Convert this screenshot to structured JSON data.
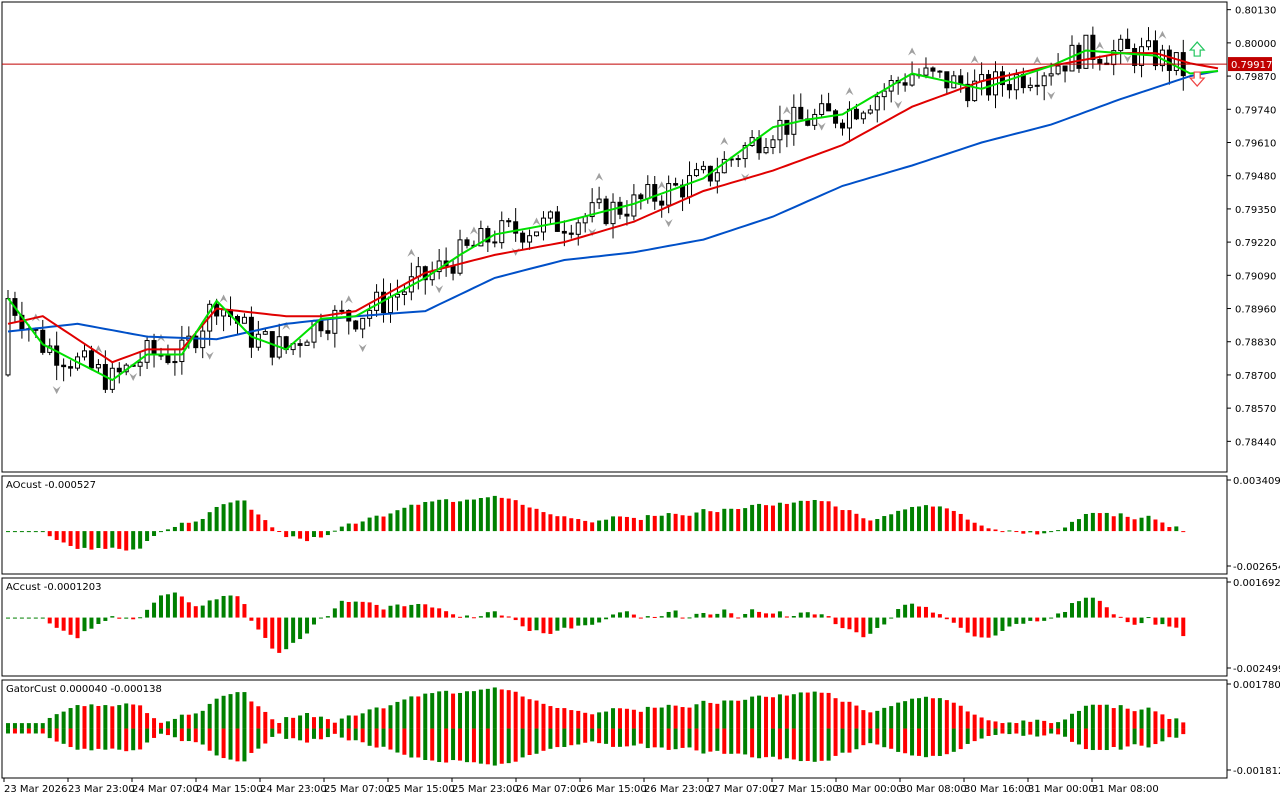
{
  "chart_data": [
    {
      "type": "candlestick",
      "title": "",
      "ylim": [
        0.7832,
        0.8016
      ],
      "yticks": [
        "0.80130",
        "0.80000",
        "0.79870",
        "0.79740",
        "0.79610",
        "0.79480",
        "0.79350",
        "0.79220",
        "0.79090",
        "0.78960",
        "0.78830",
        "0.78700",
        "0.78570",
        "0.78440"
      ],
      "current_price": "0.79917",
      "colors": {
        "up": "#ffffff",
        "down": "#000000",
        "price_line": "#c00000",
        "price_label_bg": "#c00000",
        "jaw": "#0050c8",
        "teeth": "#e00000",
        "lips": "#00e000",
        "arrows": "#a0a0a0"
      },
      "series": [
        {
          "name": "Alligator jaw",
          "color": "#0050c8",
          "x": [
            0,
            10,
            20,
            30,
            40,
            50,
            60,
            70,
            80,
            90,
            100,
            110,
            120,
            130,
            140,
            150,
            160,
            170,
            174
          ],
          "values": [
            0.7887,
            0.789,
            0.7885,
            0.7884,
            0.789,
            0.7893,
            0.7895,
            0.7908,
            0.7915,
            0.7918,
            0.7923,
            0.7932,
            0.7944,
            0.7952,
            0.7961,
            0.7968,
            0.7978,
            0.7987,
            0.7989
          ]
        },
        {
          "name": "Alligator teeth",
          "color": "#e00000",
          "x": [
            0,
            5,
            15,
            20,
            25,
            30,
            40,
            45,
            50,
            60,
            70,
            80,
            90,
            100,
            110,
            120,
            130,
            140,
            150,
            160,
            165,
            170,
            174
          ],
          "values": [
            0.789,
            0.7893,
            0.7875,
            0.788,
            0.788,
            0.7896,
            0.7893,
            0.7893,
            0.7895,
            0.791,
            0.7917,
            0.7922,
            0.793,
            0.7942,
            0.795,
            0.796,
            0.7975,
            0.7985,
            0.7991,
            0.7996,
            0.7996,
            0.7992,
            0.799
          ]
        },
        {
          "name": "Alligator lips",
          "color": "#00e000",
          "x": [
            0,
            5,
            15,
            20,
            25,
            30,
            35,
            40,
            45,
            50,
            60,
            65,
            70,
            80,
            90,
            100,
            110,
            115,
            120,
            130,
            140,
            150,
            155,
            160,
            165,
            170,
            174
          ],
          "values": [
            0.79,
            0.7882,
            0.7868,
            0.7878,
            0.7878,
            0.7899,
            0.7885,
            0.788,
            0.7892,
            0.7893,
            0.7908,
            0.7917,
            0.7925,
            0.793,
            0.7937,
            0.7947,
            0.7967,
            0.797,
            0.7972,
            0.7988,
            0.7982,
            0.7991,
            0.7997,
            0.7996,
            0.7995,
            0.7988,
            0.7989
          ]
        }
      ]
    },
    {
      "type": "bar",
      "title": "AOcust -0.000527",
      "yticks": [
        "0.003409",
        "-0.002654"
      ],
      "ylim": [
        -0.002654,
        0.003409
      ],
      "colors": {
        "up": "#008000",
        "down": "#ff0000"
      }
    },
    {
      "type": "bar",
      "title": "ACcust -0.0001203",
      "yticks": [
        "0.0016929",
        "-0.0024995"
      ],
      "ylim": [
        -0.0024995,
        0.0016929
      ],
      "colors": {
        "up": "#008000",
        "down": "#ff0000"
      }
    },
    {
      "type": "bar",
      "title": "GatorCust 0.000040 -0.000138",
      "yticks": [
        "0.001780",
        "-0.001812"
      ],
      "ylim": [
        -0.001812,
        0.00178
      ],
      "colors": {
        "up": "#008000",
        "down": "#ff0000"
      }
    }
  ],
  "time_axis": {
    "labels": [
      "23 Mar 2026",
      "23 Mar 23:00",
      "24 Mar 07:00",
      "24 Mar 15:00",
      "24 Mar 23:00",
      "25 Mar 07:00",
      "25 Mar 15:00",
      "25 Mar 23:00",
      "26 Mar 07:00",
      "26 Mar 15:00",
      "26 Mar 23:00",
      "27 Mar 07:00",
      "27 Mar 15:00",
      "30 Mar 00:00",
      "30 Mar 08:00",
      "30 Mar 16:00",
      "31 Mar 00:00",
      "31 Mar 08:00"
    ]
  }
}
